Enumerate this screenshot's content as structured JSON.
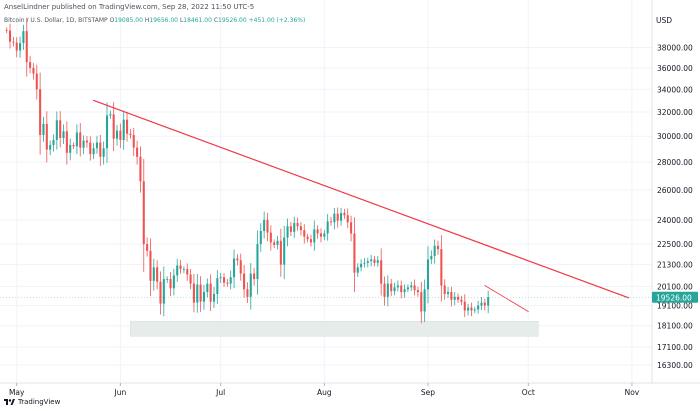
{
  "header": {
    "publisher_line": "AnselLindner published on TradingView.com, Sep 28, 2022 11:50 UTC-5",
    "symbol_line": "Bitcoin / U.S. Dollar, 1D, BITSTAMP",
    "ohlc": {
      "o_label": "O",
      "o": "19085.00",
      "h_label": "H",
      "h": "19656.00",
      "l_label": "L",
      "l": "18461.00",
      "c_label": "C",
      "c": "19526.00",
      "change": "+451.00 (+2.36%)"
    }
  },
  "footer": {
    "brand": "TradingView"
  },
  "colors": {
    "up": "#26a69a",
    "down": "#ef5350",
    "trendline": "#f23645",
    "support_zone": "#e6ece9",
    "price_label_bg": "#26a69a"
  },
  "chart_data": {
    "type": "candlestick",
    "title": "Bitcoin / U.S. Dollar, 1D, BITSTAMP",
    "currency_label": "USD",
    "y_scale": "log",
    "ylim": [
      16000,
      42000
    ],
    "y_ticks": [
      "38000.00",
      "36000.00",
      "34000.00",
      "32000.00",
      "30000.00",
      "28000.00",
      "26000.00",
      "24000.00",
      "22500.00",
      "21300.00",
      "20100.00",
      "19100.00",
      "18100.00",
      "17100.00",
      "16300.00"
    ],
    "current_price_label": "19526.00",
    "x_ticks": [
      {
        "label": "May",
        "date": "2022-05-01"
      },
      {
        "label": "Jun",
        "date": "2022-06-01"
      },
      {
        "label": "Jul",
        "date": "2022-07-01"
      },
      {
        "label": "Aug",
        "date": "2022-08-01"
      },
      {
        "label": "Sep",
        "date": "2022-09-01"
      },
      {
        "label": "Oct",
        "date": "2022-10-01"
      },
      {
        "label": "Nov",
        "date": "2022-11-01"
      }
    ],
    "x_range": [
      "2022-04-26",
      "2022-11-07"
    ],
    "candles_start": "2022-04-28",
    "closes": [
      39750,
      38600,
      38500,
      37700,
      38450,
      39700,
      36550,
      36000,
      35450,
      34000,
      30100,
      31000,
      28950,
      29300,
      29700,
      31300,
      29850,
      30400,
      28700,
      29300,
      29200,
      30300,
      29100,
      29650,
      29500,
      28600,
      29050,
      29500,
      28400,
      29050,
      31700,
      31800,
      29800,
      30450,
      29700,
      31350,
      30200,
      30100,
      29100,
      28400,
      26600,
      22500,
      22100,
      20400,
      21150,
      20350,
      19200,
      20500,
      20500,
      20000,
      20700,
      21250,
      21050,
      21050,
      20750,
      20250,
      19250,
      20200,
      19300,
      19800,
      20250,
      19300,
      19700,
      20550,
      20600,
      20300,
      20250,
      20600,
      21650,
      21550,
      20800,
      19950,
      19550,
      20800,
      20500,
      22500,
      23300,
      24000,
      23200,
      22600,
      22450,
      22700,
      21300,
      22900,
      23600,
      23250,
      23800,
      23600,
      23350,
      22950,
      22800,
      22600,
      23400,
      23150,
      22950,
      23150,
      23900,
      23850,
      24400,
      23950,
      24450,
      24300,
      23850,
      23150,
      20850,
      21150,
      21350,
      21400,
      21500,
      21600,
      21400,
      21550,
      20250,
      19550,
      20250,
      19850,
      20050,
      20150,
      19800,
      19950,
      20050,
      20150,
      19900,
      19800,
      18800,
      19950,
      21600,
      21800,
      22400,
      22200,
      20150,
      19700,
      19800,
      19400,
      19550,
      19400,
      19300,
      18850,
      19000,
      18850,
      18900,
      19100,
      19250,
      19100,
      19526
    ],
    "support_zone": {
      "from": "2022-06-04",
      "to": "2022-10-04",
      "low": 17600,
      "high": 18320
    },
    "trendlines": [
      {
        "from": {
          "date": "2022-05-24",
          "price": 33000
        },
        "to": {
          "date": "2022-10-31",
          "price": 19500
        }
      },
      {
        "from": {
          "date": "2022-09-18",
          "price": 20150
        },
        "to": {
          "date": "2022-10-01",
          "price": 18800
        }
      }
    ]
  }
}
